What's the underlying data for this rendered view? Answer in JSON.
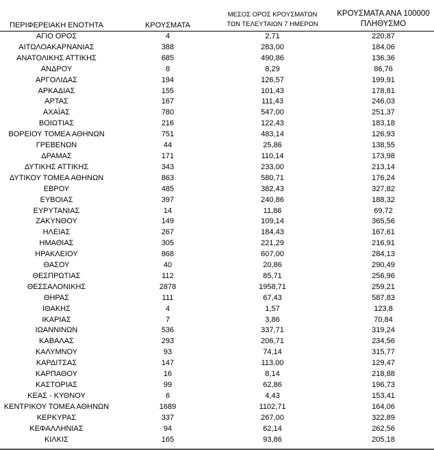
{
  "headers": {
    "region": "ΠΕΡΙΦΕΡΕΙΑΚΗ ΕΝΟΤΗΤΑ",
    "cases": "ΚΡΟΥΣΜΑΤΑ",
    "avg_line1": "ΜΕΣΟΣ ΟΡΟΣ ΚΡΟΥΣΜΑΤΩΝ",
    "avg_line2": "ΤΩΝ ΤΕΛΕΥΤΑΙΩΝ 7 ΗΜΕΡΩΝ",
    "per100k_line1": "ΚΡΟΥΣΜΑΤΑ ΑΝΑ 100000",
    "per100k_line2": "ΠΛΗΘΥΣΜΟ"
  },
  "rows": [
    [
      "ΑΓΙΟ ΟΡΟΣ",
      "4",
      "2,71",
      "220,87"
    ],
    [
      "ΑΙΤΩΛΟΑΚΑΡΝΑΝΙΑΣ",
      "388",
      "283,00",
      "184,06"
    ],
    [
      "ΑΝΑΤΟΛΙΚΗΣ ΑΤΤΙΚΗΣ",
      "685",
      "490,86",
      "136,36"
    ],
    [
      "ΑΝΔΡΟΥ",
      "8",
      "8,29",
      "86,76"
    ],
    [
      "ΑΡΓΟΛΙΔΑΣ",
      "194",
      "126,57",
      "199,91"
    ],
    [
      "ΑΡΚΑΔΙΑΣ",
      "155",
      "101,43",
      "178,81"
    ],
    [
      "ΑΡΤΑΣ",
      "167",
      "111,43",
      "246,03"
    ],
    [
      "ΑΧΑΪΑΣ",
      "780",
      "547,00",
      "251,37"
    ],
    [
      "ΒΟΙΩΤΙΑΣ",
      "216",
      "122,43",
      "183,18"
    ],
    [
      "ΒΟΡΕΙΟΥ ΤΟΜΕΑ ΑΘΗΝΩΝ",
      "751",
      "483,14",
      "126,93"
    ],
    [
      "ΓΡΕΒΕΝΩΝ",
      "44",
      "25,86",
      "138,55"
    ],
    [
      "ΔΡΑΜΑΣ",
      "171",
      "110,14",
      "173,98"
    ],
    [
      "ΔΥΤΙΚΗΣ ΑΤΤΙΚΗΣ",
      "343",
      "233,00",
      "213,14"
    ],
    [
      "ΔΥΤΙΚΟΥ ΤΟΜΕΑ ΑΘΗΝΩΝ",
      "863",
      "580,71",
      "176,24"
    ],
    [
      "ΕΒΡΟΥ",
      "485",
      "382,43",
      "327,82"
    ],
    [
      "ΕΥΒΟΙΑΣ",
      "397",
      "240,86",
      "188,32"
    ],
    [
      "ΕΥΡΥΤΑΝΙΑΣ",
      "14",
      "11,86",
      "69,72"
    ],
    [
      "ΖΑΚΥΝΘΟΥ",
      "149",
      "109,14",
      "365,56"
    ],
    [
      "ΗΛΕΙΑΣ",
      "267",
      "184,43",
      "167,61"
    ],
    [
      "ΗΜΑΘΙΑΣ",
      "305",
      "221,29",
      "216,91"
    ],
    [
      "ΗΡΑΚΛΕΙΟΥ",
      "868",
      "607,00",
      "284,13"
    ],
    [
      "ΘΑΣΟΥ",
      "40",
      "20,86",
      "290,49"
    ],
    [
      "ΘΕΣΠΡΩΤΙΑΣ",
      "112",
      "85,71",
      "256,96"
    ],
    [
      "ΘΕΣΣΑΛΟΝΙΚΗΣ",
      "2878",
      "1958,71",
      "259,21"
    ],
    [
      "ΘΗΡΑΣ",
      "111",
      "67,43",
      "587,83"
    ],
    [
      "ΙΘΑΚΗΣ",
      "4",
      "1,57",
      "123,8"
    ],
    [
      "ΙΚΑΡΙΑΣ",
      "7",
      "3,86",
      "70,84"
    ],
    [
      "ΙΩΑΝΝΙΝΩΝ",
      "536",
      "337,71",
      "319,24"
    ],
    [
      "ΚΑΒΑΛΑΣ",
      "293",
      "206,71",
      "234,56"
    ],
    [
      "ΚΑΛΥΜΝΟΥ",
      "93",
      "74,14",
      "315,77"
    ],
    [
      "ΚΑΡΔΙΤΣΑΣ",
      "147",
      "113,00",
      "129,47"
    ],
    [
      "ΚΑΡΠΑΘΟΥ",
      "16",
      "8,14",
      "218,88"
    ],
    [
      "ΚΑΣΤΟΡΙΑΣ",
      "99",
      "62,86",
      "196,73"
    ],
    [
      "ΚΕΑΣ - ΚΥΘΝΟΥ",
      "6",
      "4,43",
      "153,41"
    ],
    [
      "ΚΕΝΤΡΙΚΟΥ ΤΟΜΕΑ ΑΘΗΝΩΝ",
      "1689",
      "1102,71",
      "164,06"
    ],
    [
      "ΚΕΡΚΥΡΑΣ",
      "337",
      "267,00",
      "322,89"
    ],
    [
      "ΚΕΦΑΛΛΗΝΙΑΣ",
      "94",
      "62,14",
      "262,56"
    ],
    [
      "ΚΙΛΚΙΣ",
      "165",
      "93,86",
      "205,18"
    ]
  ]
}
